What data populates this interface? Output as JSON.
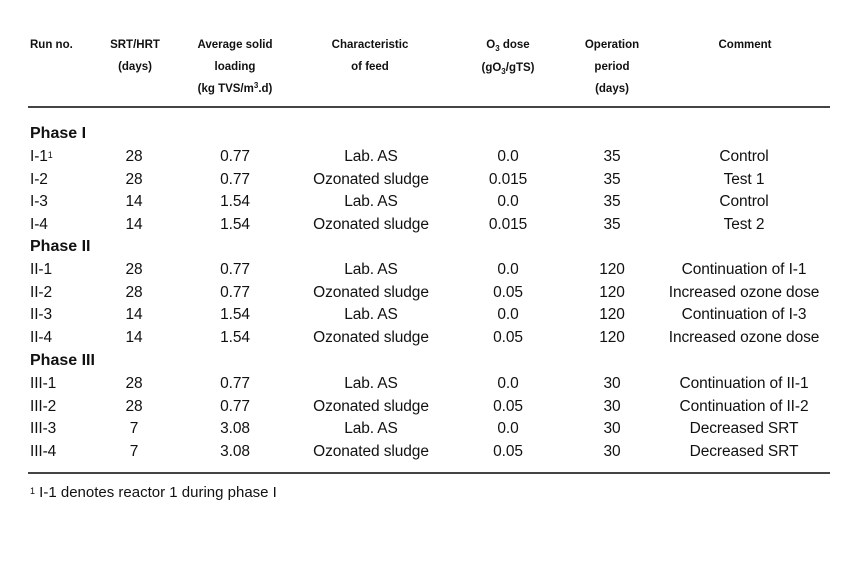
{
  "headers": {
    "run_no": "Run no.",
    "srt_line1": "SRT/HRT",
    "srt_line2": "(days)",
    "loading_line1": "Average solid",
    "loading_line2": "loading",
    "loading_line3_pre": "(kg TVS/m",
    "loading_line3_sup": "3",
    "loading_line3_post": ".d)",
    "feed_line1": "Characteristic",
    "feed_line2": "of feed",
    "dose_line1_pre": "O",
    "dose_line1_sub": "3",
    "dose_line1_post": " dose",
    "dose_line2_pre": "(gO",
    "dose_line2_sub": "3",
    "dose_line2_post": "/gTS)",
    "period_line1": "Operation",
    "period_line2": "period",
    "period_line3": "(days)",
    "comment": "Comment"
  },
  "groups": [
    {
      "phase": "Phase I",
      "rows": [
        {
          "run": "I-1",
          "run_sup": "1",
          "srt": "28",
          "loading": "0.77",
          "feed": "Lab. AS",
          "dose": "0.0",
          "period": "35",
          "comment": "Control"
        },
        {
          "run": "I-2",
          "run_sup": "",
          "srt": "28",
          "loading": "0.77",
          "feed": "Ozonated sludge",
          "dose": "0.015",
          "period": "35",
          "comment": "Test 1"
        },
        {
          "run": "I-3",
          "run_sup": "",
          "srt": "14",
          "loading": "1.54",
          "feed": "Lab. AS",
          "dose": "0.0",
          "period": "35",
          "comment": "Control"
        },
        {
          "run": "I-4",
          "run_sup": "",
          "srt": "14",
          "loading": "1.54",
          "feed": "Ozonated sludge",
          "dose": "0.015",
          "period": "35",
          "comment": "Test 2"
        }
      ]
    },
    {
      "phase": "Phase II",
      "rows": [
        {
          "run": "II-1",
          "run_sup": "",
          "srt": "28",
          "loading": "0.77",
          "feed": "Lab. AS",
          "dose": "0.0",
          "period": "120",
          "comment": "Continuation of I-1"
        },
        {
          "run": "II-2",
          "run_sup": "",
          "srt": "28",
          "loading": "0.77",
          "feed": "Ozonated sludge",
          "dose": "0.05",
          "period": "120",
          "comment": "Increased ozone dose"
        },
        {
          "run": "II-3",
          "run_sup": "",
          "srt": "14",
          "loading": "1.54",
          "feed": "Lab. AS",
          "dose": "0.0",
          "period": "120",
          "comment": "Continuation of I-3"
        },
        {
          "run": "II-4",
          "run_sup": "",
          "srt": "14",
          "loading": "1.54",
          "feed": "Ozonated sludge",
          "dose": "0.05",
          "period": "120",
          "comment": "Increased ozone dose"
        }
      ]
    },
    {
      "phase": "Phase III",
      "rows": [
        {
          "run": "III-1",
          "run_sup": "",
          "srt": "28",
          "loading": "0.77",
          "feed": "Lab. AS",
          "dose": "0.0",
          "period": "30",
          "comment": "Continuation of II-1"
        },
        {
          "run": "III-2",
          "run_sup": "",
          "srt": "28",
          "loading": "0.77",
          "feed": "Ozonated sludge",
          "dose": "0.05",
          "period": "30",
          "comment": "Continuation of II-2"
        },
        {
          "run": "III-3",
          "run_sup": "",
          "srt": "7",
          "loading": "3.08",
          "feed": "Lab. AS",
          "dose": "0.0",
          "period": "30",
          "comment": "Decreased SRT"
        },
        {
          "run": "III-4",
          "run_sup": "",
          "srt": "7",
          "loading": "3.08",
          "feed": "Ozonated sludge",
          "dose": "0.05",
          "period": "30",
          "comment": "Decreased SRT"
        }
      ]
    }
  ],
  "footnote": {
    "marker": "1",
    "text": " I-1 denotes reactor 1 during phase I"
  }
}
